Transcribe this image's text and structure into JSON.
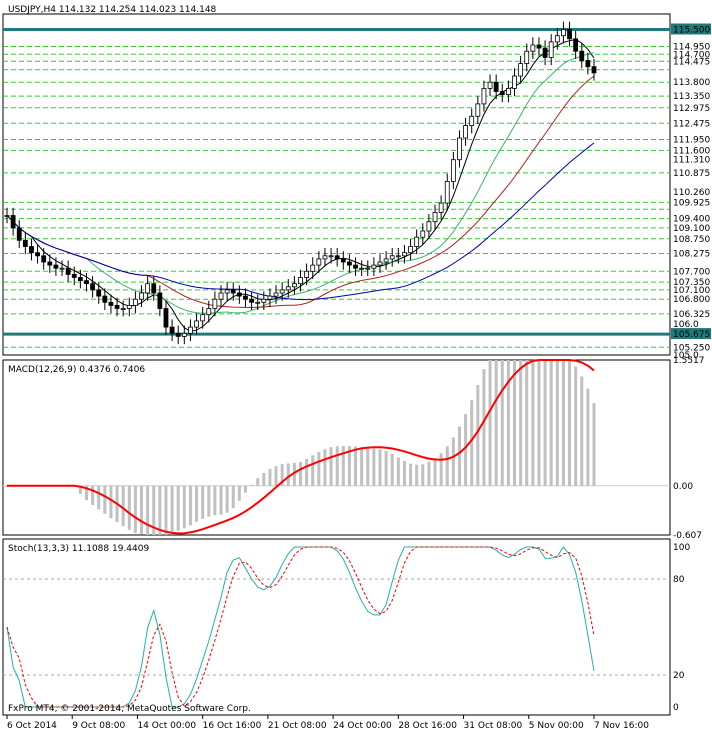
{
  "chart_data": [
    {
      "type": "candlestick",
      "title": "USDJPY,H4  114.132 114.254 114.023 114.148",
      "symbol": "USDJPY,H4",
      "ylim": [
        105.0,
        116.0
      ],
      "y_tick_labels": [
        "115.500",
        "114.950",
        "114.700",
        "114.475",
        "113.800",
        "113.350",
        "112.975",
        "112.475",
        "111.950",
        "111.600",
        "111.310",
        "110.875",
        "110.260",
        "109.925",
        "109.400",
        "109.100",
        "108.750",
        "108.275",
        "107.700",
        "107.350",
        "107.100",
        "106.800",
        "106.325",
        "106.0",
        "105.675",
        "105.250",
        "105.0"
      ],
      "key_levels": [
        115.5,
        105.675
      ],
      "horizontal_levels": [
        114.95,
        114.7,
        114.475,
        114.2,
        113.8,
        113.35,
        112.975,
        112.475,
        111.95,
        111.6,
        110.875,
        109.925,
        109.7,
        109.4,
        109.1,
        108.75,
        108.275,
        107.7,
        107.35,
        107.1,
        106.8,
        106.325,
        105.25
      ],
      "ma_colors": [
        "#000000",
        "#3cb371",
        "#b22222",
        "#0000b0"
      ],
      "price_series": [
        109.5,
        109.1,
        108.7,
        108.5,
        108.3,
        108.2,
        108.0,
        107.9,
        107.8,
        107.8,
        107.6,
        107.5,
        107.4,
        107.3,
        107.1,
        106.9,
        106.7,
        106.6,
        106.5,
        106.5,
        106.6,
        106.8,
        107.0,
        107.3,
        107.0,
        106.5,
        105.9,
        105.7,
        105.6,
        105.7,
        105.9,
        106.1,
        106.3,
        106.5,
        106.8,
        107.0,
        107.1,
        107.0,
        106.9,
        106.8,
        106.7,
        106.7,
        106.8,
        106.9,
        107.0,
        107.1,
        107.2,
        107.3,
        107.5,
        107.7,
        107.9,
        108.1,
        108.2,
        108.2,
        108.1,
        108.0,
        107.9,
        107.8,
        107.8,
        107.8,
        107.9,
        108.0,
        108.1,
        108.2,
        108.2,
        108.3,
        108.5,
        108.8,
        109.0,
        109.3,
        109.6,
        109.9,
        110.6,
        111.3,
        112.0,
        112.4,
        112.7,
        113.1,
        113.6,
        113.8,
        113.5,
        113.4,
        113.6,
        114.0,
        114.4,
        114.8,
        115.0,
        114.9,
        114.6,
        115.1,
        115.3,
        115.5,
        115.2,
        114.8,
        114.5,
        114.3,
        114.1
      ],
      "line_color": "#000000",
      "background": "#ffffff"
    },
    {
      "type": "macd",
      "title": "MACD(12,26,9) 0.4376 0.7406",
      "params": "MACD(12,26,9)",
      "values": [
        0.4376,
        0.7406
      ],
      "ylim": [
        -0.607,
        1.5517
      ],
      "y_tick_labels": [
        "1.5517",
        "0.00",
        "-0.607"
      ],
      "histogram_color": "#c0c0c0",
      "signal_color": "#ff0000"
    },
    {
      "type": "stochastic",
      "title": "Stoch(13,3,3) 11.1088 19.4409",
      "params": "Stoch(13,3,3)",
      "values": [
        11.1088,
        19.4409
      ],
      "ylim": [
        0,
        100
      ],
      "y_tick_labels": [
        "100",
        "80",
        "20",
        "0"
      ],
      "main_color": "#20b2aa",
      "signal_color": "#ff0000",
      "copyright": "FxPro MT4, © 2001-2014, MetaQuotes Software Corp."
    }
  ],
  "x_tick_labels": [
    "6 Oct 2014",
    "9 Oct 08:00",
    "14 Oct 00:00",
    "16 Oct 16:00",
    "21 Oct 08:00",
    "24 Oct 00:00",
    "28 Oct 16:00",
    "31 Oct 08:00",
    "5 Nov 00:00",
    "7 Nov 16:00"
  ]
}
